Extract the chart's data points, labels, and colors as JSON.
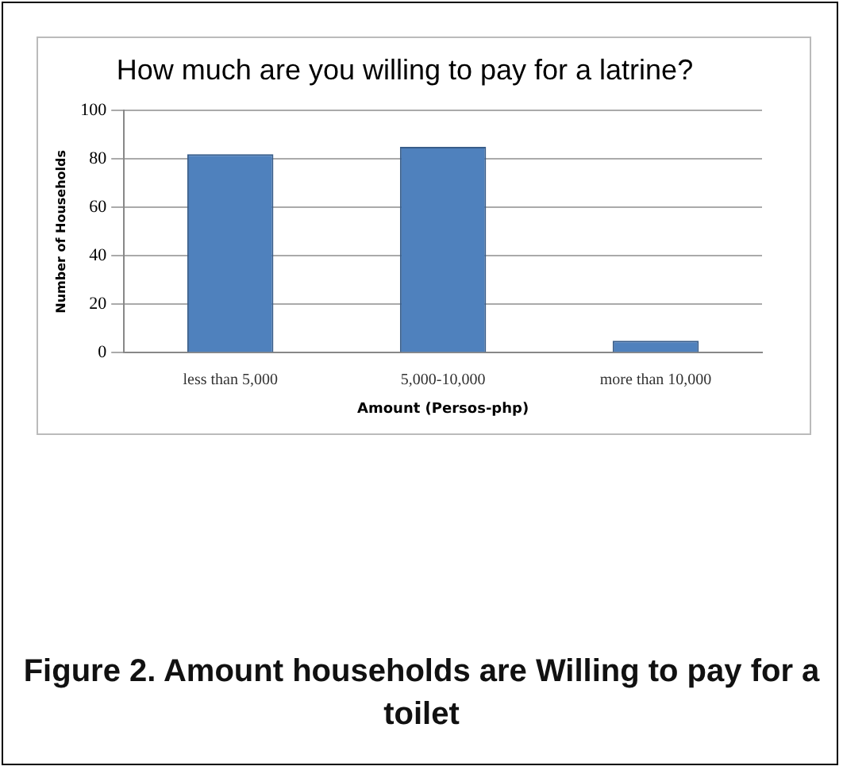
{
  "chart_data": {
    "type": "bar",
    "title": "How much are you willing to pay for a latrine?",
    "xlabel": "Amount (Persos-php)",
    "ylabel": "Number of Households",
    "categories": [
      "less than 5,000",
      "5,000-10,000",
      "more than 10,000"
    ],
    "values": [
      82,
      85,
      5
    ],
    "color": "#4f81bd",
    "ylim": [
      0,
      100
    ],
    "yticks": [
      0,
      20,
      40,
      60,
      80,
      100
    ],
    "grid": "y",
    "legend": false,
    "annotations": [
      "Figure 2. Amount households are Willing to pay for a toilet"
    ]
  }
}
